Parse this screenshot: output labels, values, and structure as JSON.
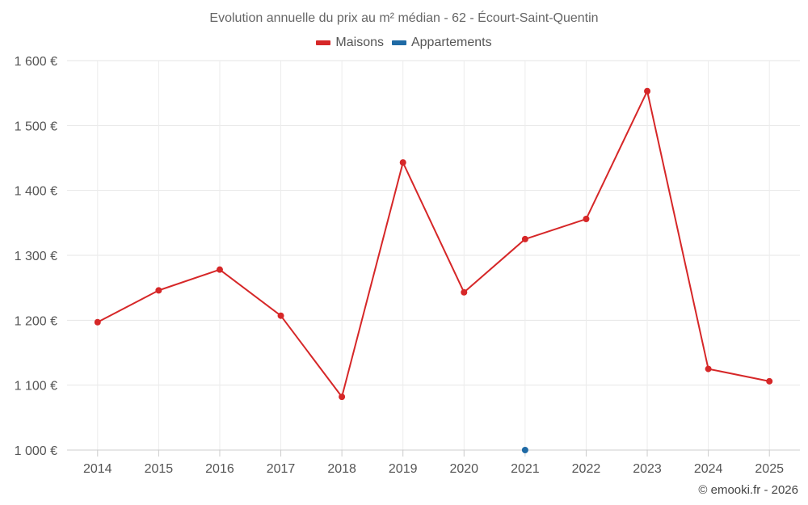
{
  "chart_data": {
    "type": "line",
    "title": "Evolution annuelle du prix au m² médian - 62 - Écourt-Saint-Quentin",
    "xlabel": "",
    "ylabel": "",
    "categories": [
      "2014",
      "2015",
      "2016",
      "2017",
      "2018",
      "2019",
      "2020",
      "2021",
      "2022",
      "2023",
      "2024",
      "2025"
    ],
    "ylim": [
      1000,
      1600
    ],
    "yticks": [
      1000,
      1100,
      1200,
      1300,
      1400,
      1500,
      1600
    ],
    "ytick_labels": [
      "1 000 €",
      "1 100 €",
      "1 200 €",
      "1 300 €",
      "1 400 €",
      "1 500 €",
      "1 600 €"
    ],
    "grid": true,
    "legend_position": "top-center",
    "series": [
      {
        "name": "Maisons",
        "color": "#d62728",
        "values": [
          1197,
          1246,
          1278,
          1207,
          1082,
          1443,
          1243,
          1325,
          1356,
          1553,
          1125,
          1106
        ]
      },
      {
        "name": "Appartements",
        "color": "#1f6aa5",
        "values": [
          null,
          null,
          null,
          null,
          null,
          null,
          null,
          1000,
          null,
          null,
          null,
          null
        ]
      }
    ]
  },
  "credits": "© emooki.fr - 2026"
}
